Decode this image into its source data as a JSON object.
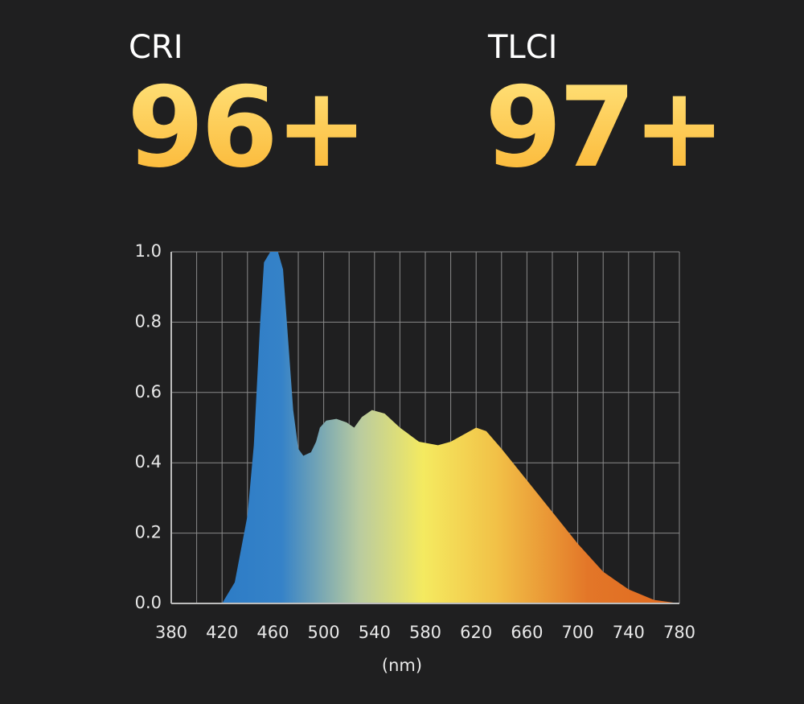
{
  "metrics": [
    {
      "label": "CRI",
      "value": "96+"
    },
    {
      "label": "TLCI",
      "value": "97+"
    }
  ],
  "chart_data": {
    "type": "area",
    "x_label": "(nm)",
    "x": [
      420,
      430,
      440,
      445,
      450,
      453,
      458,
      464,
      468,
      472,
      476,
      480,
      484,
      490,
      494,
      497,
      502,
      510,
      518,
      524,
      530,
      538,
      548,
      560,
      575,
      590,
      600,
      610,
      620,
      628,
      640,
      660,
      680,
      700,
      720,
      740,
      760,
      780
    ],
    "values": [
      0,
      0.06,
      0.25,
      0.45,
      0.8,
      0.97,
      1,
      1,
      0.95,
      0.75,
      0.55,
      0.44,
      0.42,
      0.43,
      0.46,
      0.5,
      0.52,
      0.525,
      0.515,
      0.5,
      0.53,
      0.55,
      0.54,
      0.5,
      0.46,
      0.45,
      0.46,
      0.48,
      0.5,
      0.49,
      0.44,
      0.35,
      0.26,
      0.17,
      0.09,
      0.04,
      0.01,
      0
    ],
    "xlim": [
      380,
      780
    ],
    "ylim": [
      0,
      1
    ],
    "xticks": [
      380,
      420,
      460,
      500,
      540,
      580,
      620,
      660,
      700,
      740,
      780
    ],
    "x_minor_ticks": [
      400,
      440,
      480,
      520,
      560,
      600,
      640,
      680,
      720,
      760
    ],
    "yticks": [
      {
        "value": 0,
        "label": "0.0"
      },
      0.2,
      0.4,
      0.6,
      0.8,
      {
        "value": 1,
        "label": "1.0"
      }
    ],
    "grid": true
  }
}
